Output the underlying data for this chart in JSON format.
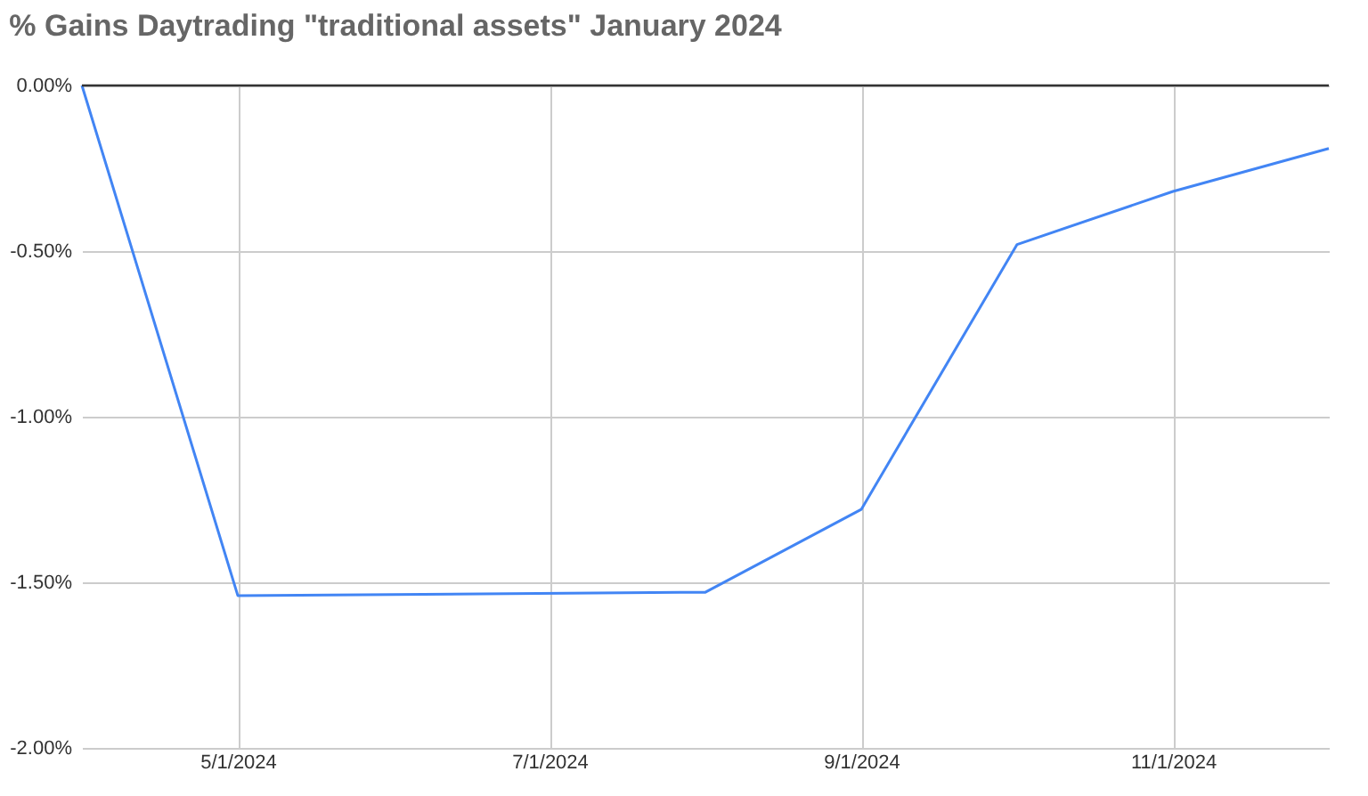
{
  "chart_data": {
    "type": "line",
    "title": "% Gains Daytrading \"traditional assets\" January 2024",
    "x": [
      "2024-01-04",
      "2024-01-05",
      "2024-01-08",
      "2024-01-09",
      "2024-01-10",
      "2024-01-11",
      "2024-01-12"
    ],
    "series": [
      {
        "color": "#4285f4",
        "values": [
          0,
          -1.54,
          -1.53,
          -1.28,
          -0.48,
          -0.32,
          -0.19
        ]
      }
    ],
    "xlim": [
      "2024-01-04",
      "2024-01-12"
    ],
    "xticks": [
      {
        "value": "2024-01-05",
        "label": "5/1/2024"
      },
      {
        "value": "2024-01-07",
        "label": "7/1/2024"
      },
      {
        "value": "2024-01-09",
        "label": "9/1/2024"
      },
      {
        "value": "2024-01-11",
        "label": "11/1/2024"
      }
    ],
    "ylim": [
      -2,
      0
    ],
    "yticks": [
      {
        "value": 0,
        "label": "0.00%"
      },
      {
        "value": -0.5,
        "label": "-0.50%"
      },
      {
        "value": -1,
        "label": "-1.00%"
      },
      {
        "value": -1.5,
        "label": "-1.50%"
      },
      {
        "value": -2,
        "label": "-2.00%"
      }
    ],
    "ref_lines": [
      {
        "axis": "y",
        "value": 0,
        "color": "#333333"
      }
    ],
    "grid": true,
    "marker": "none",
    "line_style": "solid"
  }
}
